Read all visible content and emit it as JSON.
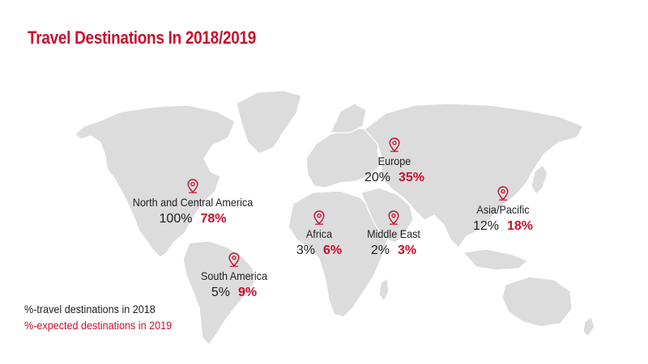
{
  "title": "Travel Destinations In 2018/2019",
  "colors": {
    "accent": "#c8102e",
    "land": "#dcdcdc",
    "text": "#222222"
  },
  "regions": [
    {
      "name": "North and Central America",
      "pct_2018": "100%",
      "pct_2019": "78%"
    },
    {
      "name": "South America",
      "pct_2018": "5%",
      "pct_2019": "9%"
    },
    {
      "name": "Africa",
      "pct_2018": "3%",
      "pct_2019": "6%"
    },
    {
      "name": "Europe",
      "pct_2018": "20%",
      "pct_2019": "35%"
    },
    {
      "name": "Middle East",
      "pct_2018": "2%",
      "pct_2019": "3%"
    },
    {
      "name": "Asia/Pacific",
      "pct_2018": "12%",
      "pct_2019": "18%"
    }
  ],
  "legend": {
    "item_2018": "%-travel destinations in 2018",
    "item_2019": "%-expected destinations in 2019"
  }
}
